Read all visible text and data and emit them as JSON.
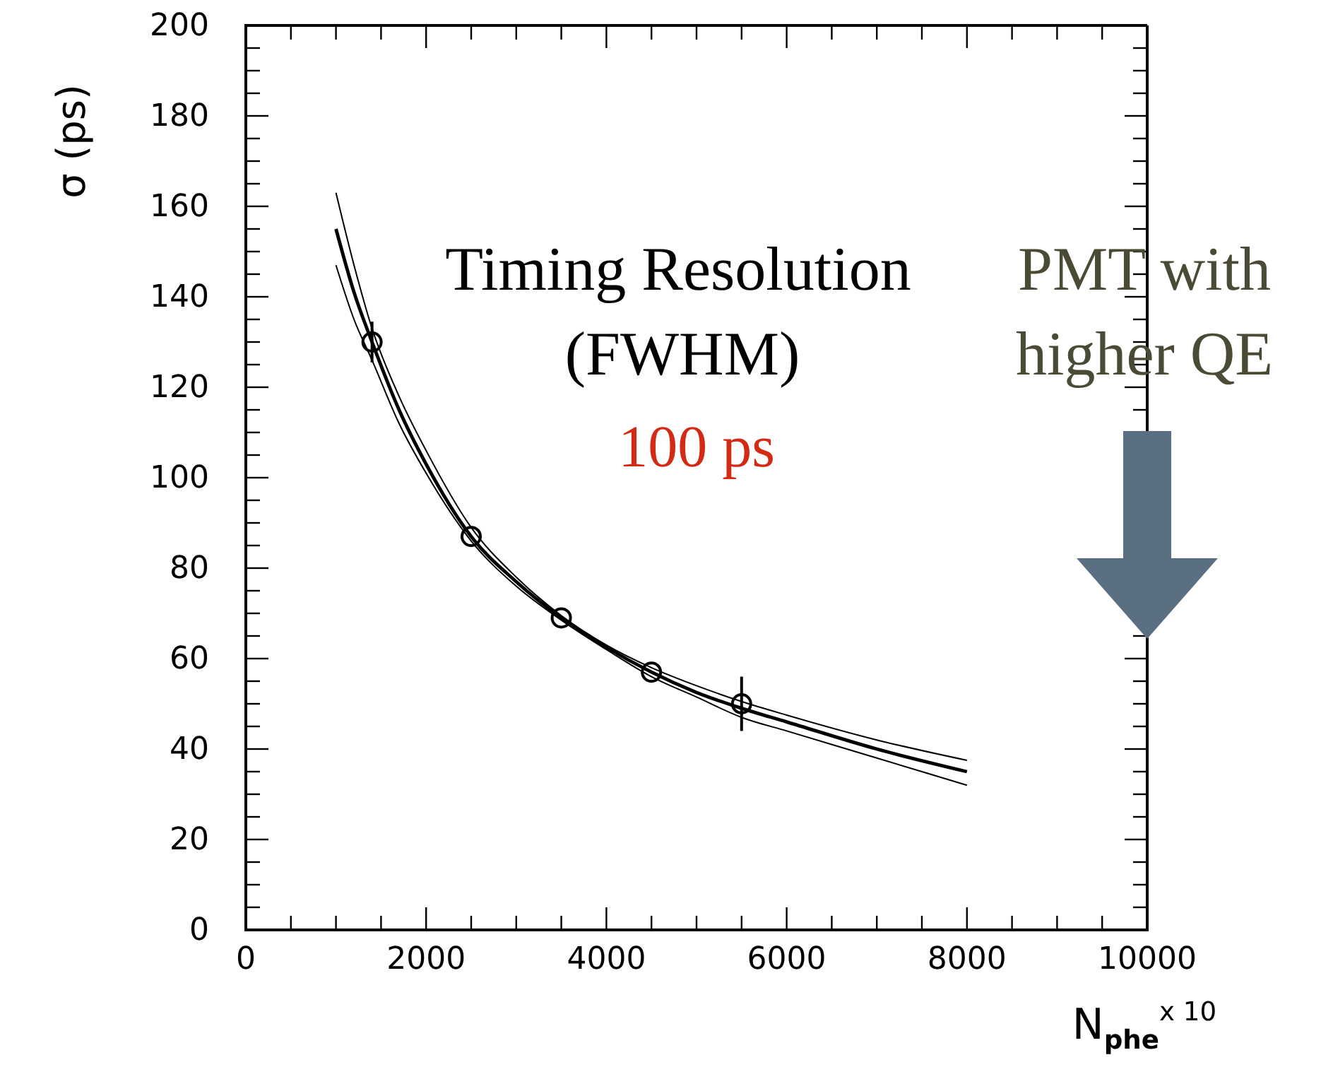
{
  "chart_data": {
    "type": "scatter",
    "xlabel": "N$_{phe}$$^{x 10}$",
    "ylabel": "σ (ps)",
    "xlim": [
      0,
      10000
    ],
    "ylim": [
      0,
      200
    ],
    "xticks": [
      0,
      {
        "value": 500,
        "label": null
      },
      {
        "value": 1000,
        "label": null
      },
      {
        "value": 1500,
        "label": null
      },
      2000,
      {
        "value": 2500,
        "label": null
      },
      {
        "value": 3000,
        "label": null
      },
      {
        "value": 3500,
        "label": null
      },
      4000,
      {
        "value": 4500,
        "label": null
      },
      {
        "value": 5000,
        "label": null
      },
      {
        "value": 5500,
        "label": null
      },
      6000,
      {
        "value": 6500,
        "label": null
      },
      {
        "value": 7000,
        "label": null
      },
      {
        "value": 7500,
        "label": null
      },
      8000,
      {
        "value": 8500,
        "label": null
      },
      {
        "value": 9000,
        "label": null
      },
      {
        "value": 9500,
        "label": null
      },
      10000
    ],
    "yticks": [
      0,
      {
        "value": 5,
        "label": null
      },
      {
        "value": 10,
        "label": null
      },
      {
        "value": 15,
        "label": null
      },
      20,
      {
        "value": 25,
        "label": null
      },
      {
        "value": 30,
        "label": null
      },
      {
        "value": 35,
        "label": null
      },
      40,
      {
        "value": 45,
        "label": null
      },
      {
        "value": 50,
        "label": null
      },
      {
        "value": 55,
        "label": null
      },
      60,
      {
        "value": 65,
        "label": null
      },
      {
        "value": 70,
        "label": null
      },
      {
        "value": 75,
        "label": null
      },
      80,
      {
        "value": 85,
        "label": null
      },
      {
        "value": 90,
        "label": null
      },
      {
        "value": 95,
        "label": null
      },
      100,
      {
        "value": 105,
        "label": null
      },
      {
        "value": 110,
        "label": null
      },
      {
        "value": 115,
        "label": null
      },
      120,
      {
        "value": 125,
        "label": null
      },
      {
        "value": 130,
        "label": null
      },
      {
        "value": 135,
        "label": null
      },
      140,
      {
        "value": 145,
        "label": null
      },
      {
        "value": 150,
        "label": null
      },
      {
        "value": 155,
        "label": null
      },
      160,
      {
        "value": 165,
        "label": null
      },
      {
        "value": 170,
        "label": null
      },
      {
        "value": 175,
        "label": null
      },
      180,
      {
        "value": 185,
        "label": null
      },
      {
        "value": 190,
        "label": null
      },
      {
        "value": 195,
        "label": null
      },
      200
    ],
    "grid": false,
    "series": [
      {
        "type": "line",
        "color": "#000000",
        "marker": "none",
        "x": [
          1000,
          1200,
          1400,
          1700,
          2000,
          2500,
          3000,
          3500,
          4000,
          4500,
          5000,
          5500,
          6000,
          7000,
          8000
        ],
        "values": [
          163,
          147,
          133,
          118,
          106,
          89,
          78,
          69.5,
          63,
          58,
          54,
          50.5,
          47.5,
          42,
          37.5
        ]
      },
      {
        "type": "line",
        "color": "#000000",
        "marker": "none",
        "x": [
          1000,
          1200,
          1400,
          1700,
          2000,
          2500,
          3000,
          3500,
          4000,
          4500,
          5000,
          5500,
          6000,
          7000,
          8000
        ],
        "values": [
          155,
          141,
          130,
          115,
          103,
          87,
          77,
          69,
          62.5,
          57,
          52.5,
          49,
          46,
          40,
          35
        ]
      },
      {
        "type": "line",
        "color": "#000000",
        "marker": "none",
        "x": [
          1000,
          1200,
          1400,
          1700,
          2000,
          2500,
          3000,
          3500,
          4000,
          4500,
          5000,
          5500,
          6000,
          7000,
          8000
        ],
        "values": [
          147,
          135,
          126,
          112,
          101,
          86,
          76,
          68.5,
          62,
          56,
          51.5,
          47,
          44,
          38,
          32
        ]
      },
      {
        "type": "scatter",
        "color": "#000000",
        "marker": "circle",
        "x": [
          1400,
          2500,
          3500,
          4500,
          5500
        ],
        "values": [
          130,
          87,
          69,
          57,
          50
        ],
        "errors": [
          4.5,
          null,
          null,
          null,
          6
        ]
      }
    ],
    "annotations": [
      "Timing Resolution",
      "(FWHM)",
      "100 ps",
      "PMT with",
      "higher QE"
    ]
  }
}
